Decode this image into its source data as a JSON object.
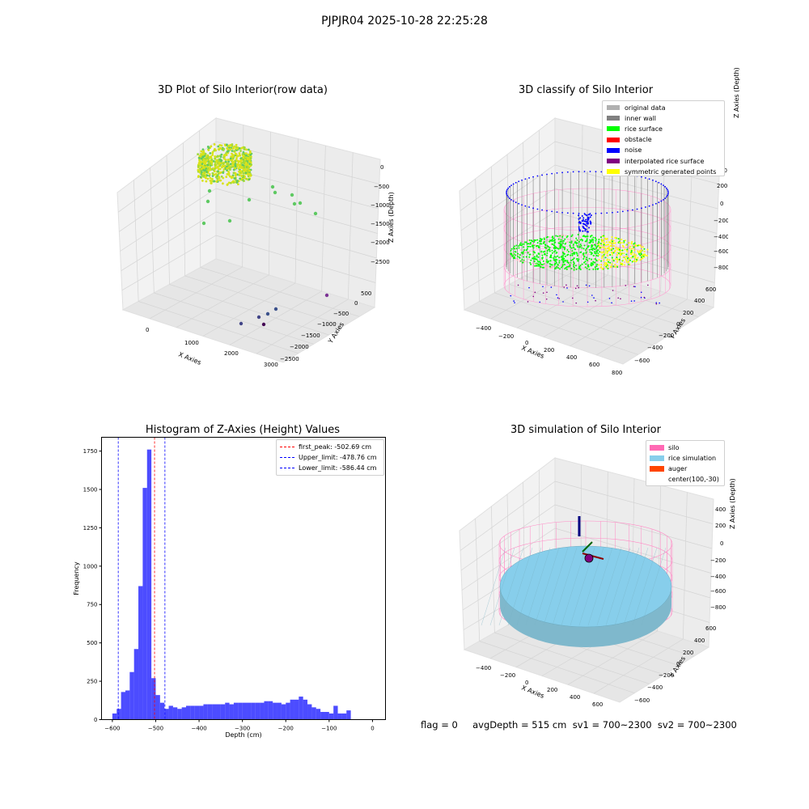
{
  "figure": {
    "suptitle": "PJPJR04 2025-10-28 22:25:28",
    "footer": "flag = 0     avgDepth = 515 cm  sv1 = 700~2300  sv2 = 700~2300"
  },
  "colors": {
    "original": "#b0b0b0",
    "inner_wall": "#808080",
    "rice_surface": "#00ff00",
    "obstacle": "#ff0000",
    "noise": "#0000ff",
    "interp": "#800080",
    "symmetric": "#ffff00",
    "silo": "#ff69b4",
    "rice_sim": "#87ceeb",
    "auger": "#ff4500",
    "hist_bar": "#0000ff",
    "peak_line": "#ff0000",
    "limit_line": "#0000ff",
    "pane": "#f2f2f2",
    "grid": "#dcdcdc"
  },
  "chart_data": [
    {
      "type": "scatter",
      "title": "3D Plot of Silo Interior(row data)",
      "xlabel": "X Axies",
      "ylabel": "Y Axies",
      "zlabel": "Z Axies (Depth)",
      "x_ticks": [
        "0",
        "1000",
        "2000",
        "3000"
      ],
      "y_ticks": [
        "500",
        "0",
        "−500",
        "−1000",
        "−1500",
        "−2000",
        "−2500"
      ],
      "z_ticks": [
        "0",
        "−500",
        "−1000",
        "−1500",
        "−2000",
        "−2500"
      ],
      "colormap": "viridis",
      "note_points": "dense ring of points near origin at shallow depth plus scattered outliers"
    },
    {
      "type": "scatter",
      "title": "3D classify of Silo Interior",
      "xlabel": "X Axies",
      "ylabel": "Y Axies",
      "zlabel": "Z Axies (Depth)",
      "x_ticks": [
        "−400",
        "−200",
        "0",
        "200",
        "400",
        "600",
        "800"
      ],
      "y_ticks": [
        "600",
        "400",
        "200",
        "0",
        "−200",
        "−400",
        "−600"
      ],
      "z_ticks": [
        "200",
        "0",
        "−200",
        "−400",
        "−600",
        "−800"
      ],
      "z_tick_partial": "00",
      "legend": [
        "original data",
        "inner wall",
        "rice surface",
        "obstacle",
        "noise",
        "interpolated rice surface",
        "symmetric generated points"
      ],
      "legend_position": "top-right"
    },
    {
      "type": "bar",
      "title": "Histogram of Z-Axies (Height) Values",
      "xlabel": "Depth (cm)",
      "ylabel": "Frequency",
      "xlim": [
        -625,
        30
      ],
      "ylim": [
        0,
        1840
      ],
      "x_ticks": [
        -600,
        -500,
        -400,
        -300,
        -200,
        -100,
        0
      ],
      "x_tick_labels": [
        "−600",
        "−500",
        "−400",
        "−300",
        "−200",
        "−100",
        "0"
      ],
      "y_ticks": [
        0,
        250,
        500,
        750,
        1000,
        1250,
        1500,
        1750
      ],
      "y_tick_labels": [
        "0",
        "250",
        "500",
        "750",
        "1000",
        "1250",
        "1500",
        "1750"
      ],
      "bin_start": -600,
      "bin_width": 10,
      "values": [
        40,
        70,
        180,
        190,
        310,
        460,
        870,
        1510,
        1760,
        270,
        160,
        110,
        70,
        90,
        80,
        70,
        80,
        90,
        90,
        90,
        90,
        100,
        100,
        100,
        100,
        100,
        110,
        100,
        110,
        110,
        110,
        110,
        110,
        110,
        110,
        120,
        120,
        110,
        110,
        100,
        110,
        130,
        130,
        150,
        130,
        100,
        80,
        70,
        50,
        50,
        40,
        90,
        40,
        40,
        60
      ],
      "vlines": [
        {
          "label": "first_peak: -502.69 cm",
          "x": -502.69,
          "color": "#ff0000"
        },
        {
          "label": "Upper_limit: -478.76 cm",
          "x": -478.76,
          "color": "#0000ff"
        },
        {
          "label": "Lower_limit: -586.44 cm",
          "x": -586.44,
          "color": "#0000ff"
        }
      ],
      "legend_position": "top-right"
    },
    {
      "type": "scatter",
      "title": "3D simulation of Silo Interior",
      "xlabel": "X Axies",
      "ylabel": "Y Axies",
      "zlabel": "Z Axies (Depth)",
      "x_ticks": [
        "−400",
        "−200",
        "0",
        "200",
        "400",
        "600"
      ],
      "y_ticks": [
        "600",
        "400",
        "200",
        "0",
        "−200",
        "−400",
        "−600"
      ],
      "z_ticks": [
        "400",
        "200",
        "0",
        "−200",
        "−400",
        "−600",
        "−800"
      ],
      "legend": [
        "silo",
        "rice simulation",
        "auger",
        "center(100,-30)"
      ],
      "legend_position": "top-right"
    }
  ]
}
